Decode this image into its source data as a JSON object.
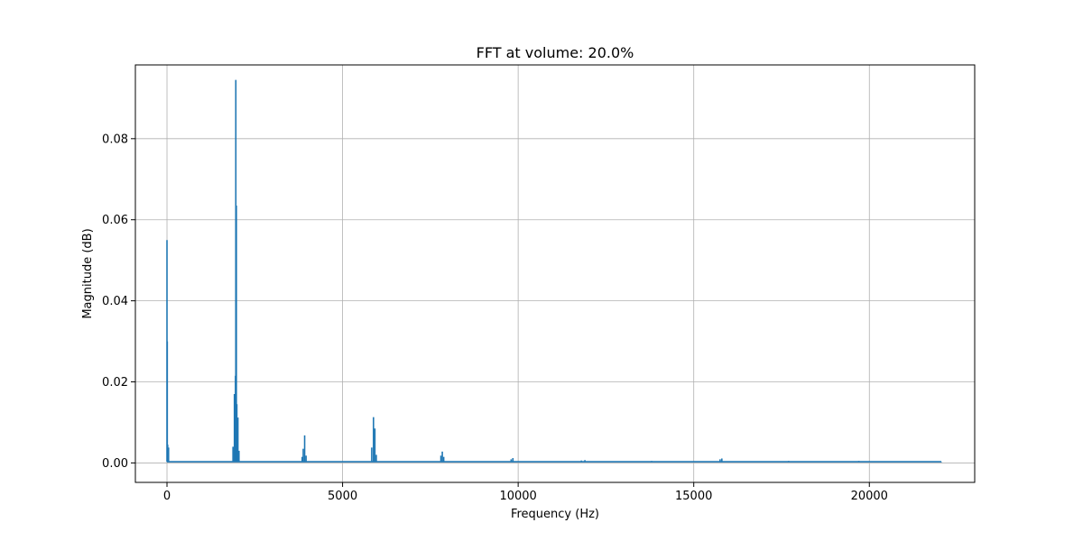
{
  "chart_data": {
    "type": "line",
    "title": "FFT at volume: 20.0%",
    "xlabel": "Frequency (Hz)",
    "ylabel": "Magnitude (dB)",
    "xlim": [
      -900,
      23000
    ],
    "ylim": [
      -0.0048,
      0.0982
    ],
    "grid": true,
    "x_ticks": [
      0,
      5000,
      10000,
      15000,
      20000
    ],
    "x_tick_labels": [
      "0",
      "5000",
      "10000",
      "15000",
      "20000"
    ],
    "y_ticks": [
      0.0,
      0.02,
      0.04,
      0.06,
      0.08
    ],
    "y_tick_labels": [
      "0.00",
      "0.02",
      "0.04",
      "0.06",
      "0.08"
    ],
    "series": [
      {
        "color": "#1f77b4",
        "noise_floor": 0.0003,
        "x_range": [
          0,
          22050
        ],
        "peaks": [
          {
            "x": 0,
            "y": 0.055
          },
          {
            "x": 8,
            "y": 0.03
          },
          {
            "x": 20,
            "y": 0.0045
          },
          {
            "x": 45,
            "y": 0.0038
          },
          {
            "x": 1880,
            "y": 0.004
          },
          {
            "x": 1920,
            "y": 0.017
          },
          {
            "x": 1950,
            "y": 0.0215
          },
          {
            "x": 1960,
            "y": 0.0945
          },
          {
            "x": 1975,
            "y": 0.0635
          },
          {
            "x": 1990,
            "y": 0.0145
          },
          {
            "x": 2020,
            "y": 0.0112
          },
          {
            "x": 2050,
            "y": 0.003
          },
          {
            "x": 3850,
            "y": 0.0015
          },
          {
            "x": 3880,
            "y": 0.0035
          },
          {
            "x": 3920,
            "y": 0.0068
          },
          {
            "x": 3960,
            "y": 0.0018
          },
          {
            "x": 5830,
            "y": 0.0038
          },
          {
            "x": 5880,
            "y": 0.0113
          },
          {
            "x": 5920,
            "y": 0.0085
          },
          {
            "x": 5960,
            "y": 0.002
          },
          {
            "x": 7800,
            "y": 0.0018
          },
          {
            "x": 7840,
            "y": 0.0028
          },
          {
            "x": 7880,
            "y": 0.0015
          },
          {
            "x": 9800,
            "y": 0.0009
          },
          {
            "x": 9850,
            "y": 0.0012
          },
          {
            "x": 11800,
            "y": 0.0006
          },
          {
            "x": 11900,
            "y": 0.0007
          },
          {
            "x": 13800,
            "y": 0.0005
          },
          {
            "x": 15750,
            "y": 0.0009
          },
          {
            "x": 15800,
            "y": 0.0011
          },
          {
            "x": 17700,
            "y": 0.0005
          },
          {
            "x": 19700,
            "y": 0.0005
          },
          {
            "x": 22050,
            "y": 0.0002
          }
        ]
      }
    ]
  }
}
